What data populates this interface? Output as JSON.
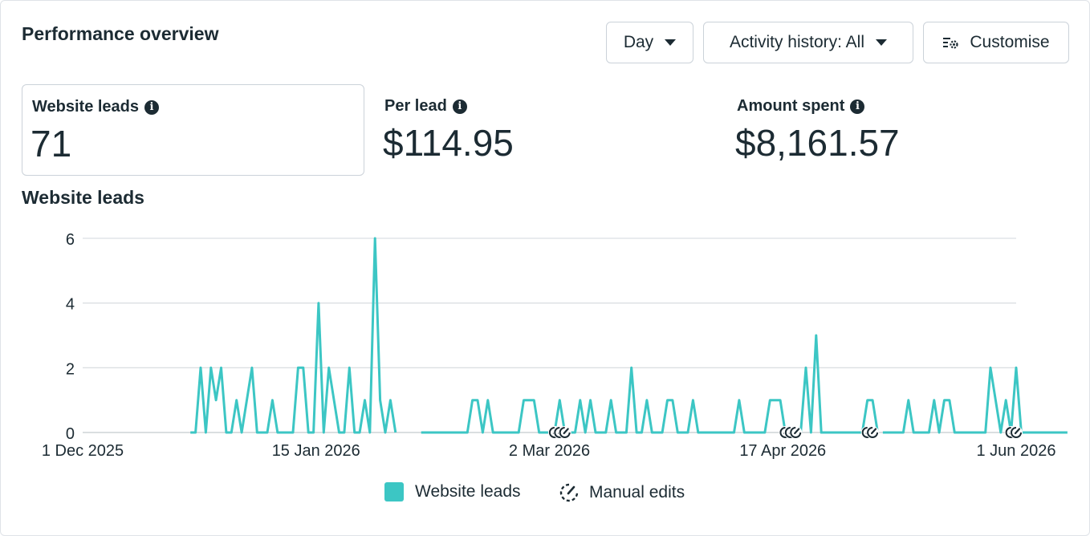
{
  "header": {
    "title": "Performance overview",
    "day_label": "Day",
    "activity_label": "Activity history: All",
    "customise_label": "Customise"
  },
  "metrics": [
    {
      "label": "Website leads",
      "value": "71"
    },
    {
      "label": "Per lead",
      "value": "$114.95"
    },
    {
      "label": "Amount spent",
      "value": "$8,161.57"
    }
  ],
  "chart_title": "Website leads",
  "legend": {
    "series_label": "Website leads",
    "edits_label": "Manual edits"
  },
  "colors": {
    "series": "#3cc6c4",
    "text": "#1c2b33",
    "grid": "#dcdfe3"
  },
  "chart_data": {
    "type": "line",
    "x_start": "1 Dec 2025",
    "x_end": "1 Jun 2026",
    "x_ticks": [
      "1 Dec 2025",
      "15 Jan 2026",
      "2 Mar 2026",
      "17 Apr 2026",
      "1 Jun 2026"
    ],
    "y_ticks": [
      0,
      2,
      4,
      6
    ],
    "ylim": [
      0,
      6
    ],
    "grid": true,
    "legend_position": "bottom",
    "series": [
      {
        "name": "Website leads",
        "segments": [
          {
            "start": "2025-12-22",
            "values": [
              0,
              0,
              2,
              0,
              2,
              1,
              2,
              0,
              0,
              1,
              0,
              1,
              2,
              0,
              0,
              0,
              1,
              0,
              0,
              0,
              0,
              2,
              2,
              0,
              0,
              4,
              0,
              2,
              1,
              0,
              0,
              2,
              0,
              0,
              1,
              0,
              6,
              1,
              0,
              1,
              0
            ]
          },
          {
            "start": "2026-02-05",
            "values": [
              0,
              0,
              0,
              0,
              0,
              0,
              0,
              0,
              0,
              0,
              1,
              1,
              0,
              1,
              0,
              0,
              0,
              0,
              0,
              0,
              1,
              1,
              1,
              0,
              0,
              0,
              0,
              1,
              0,
              0,
              0,
              1,
              0,
              1,
              0,
              0,
              0,
              1,
              0,
              0,
              0,
              2,
              0,
              0,
              1,
              0,
              0,
              0,
              1,
              1,
              0,
              0,
              0,
              1,
              0,
              0,
              0,
              0,
              0,
              0,
              0,
              0,
              1,
              0,
              0,
              0,
              0,
              0,
              1,
              1,
              1,
              0,
              0,
              0,
              0,
              2,
              0,
              3,
              0,
              0,
              0,
              0,
              0,
              0,
              0,
              0,
              0,
              1,
              1,
              0
            ]
          },
          {
            "start": "2026-05-06",
            "values": [
              0,
              0,
              0,
              0,
              0,
              1,
              0,
              0,
              0,
              0,
              1,
              0,
              1,
              1,
              0,
              0,
              0,
              0,
              0,
              0,
              0,
              2,
              1,
              0,
              1,
              0,
              2,
              0,
              0,
              0,
              0,
              0,
              0,
              0,
              0,
              0,
              0
            ]
          }
        ]
      }
    ],
    "manual_edits": [
      "2026-03-03",
      "2026-03-04",
      "2026-03-05",
      "2026-04-17",
      "2026-04-18",
      "2026-04-19",
      "2026-05-03",
      "2026-05-04",
      "2026-05-31",
      "2026-06-01"
    ]
  }
}
